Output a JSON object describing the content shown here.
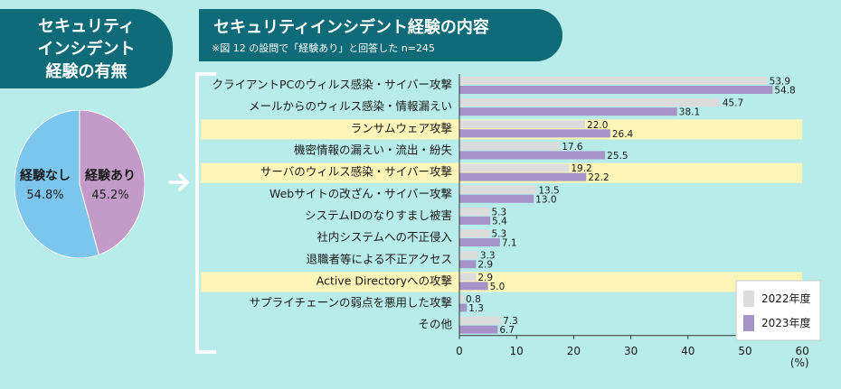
{
  "left_title": "セキュリティ\nインシデント\n経験の有無",
  "right_title": "セキュリティインシデント経験の内容",
  "note": "※図 12 の設問で「経験あり」と回答した n=245",
  "pie": {
    "slices": [
      {
        "name": "経験なし",
        "value": 54.8,
        "label": "54.8%",
        "color": "#7cc6ee"
      },
      {
        "name": "経験あり",
        "value": 45.2,
        "label": "45.2%",
        "color": "#c29bc9"
      }
    ]
  },
  "chart_data": {
    "type": "bar",
    "orientation": "horizontal",
    "categories": [
      "クライアントPCのウィルス感染・サイバー攻撃",
      "メールからのウィルス感染・情報漏えい",
      "ランサムウェア攻撃",
      "機密情報の漏えい・流出・紛失",
      "サーバのウィルス感染・サイバー攻撃",
      "Webサイトの改ざん・サイバー攻撃",
      "システムIDのなりすまし被害",
      "社内システムへの不正侵入",
      "退職者等による不正アクセス",
      "Active Directoryへの攻撃",
      "サプライチェーンの弱点を悪用した攻撃",
      "その他"
    ],
    "highlighted": [
      "ランサムウェア攻撃",
      "サーバのウィルス感染・サイバー攻撃",
      "Active Directoryへの攻撃"
    ],
    "series": [
      {
        "name": "2022年度",
        "color": "#dcdcdc",
        "values": [
          53.9,
          45.7,
          22.0,
          17.6,
          19.2,
          13.5,
          5.3,
          5.3,
          3.3,
          2.9,
          0.8,
          7.3
        ]
      },
      {
        "name": "2023年度",
        "color": "#a694c8",
        "values": [
          54.8,
          38.1,
          26.4,
          25.5,
          22.2,
          13.0,
          5.4,
          7.1,
          2.9,
          5.0,
          1.3,
          6.7
        ]
      }
    ],
    "xlim": [
      0,
      60
    ],
    "xticks": [
      0,
      10,
      20,
      30,
      40,
      50,
      60
    ],
    "xunit": "(%)",
    "legend_position": "bottom-right"
  }
}
